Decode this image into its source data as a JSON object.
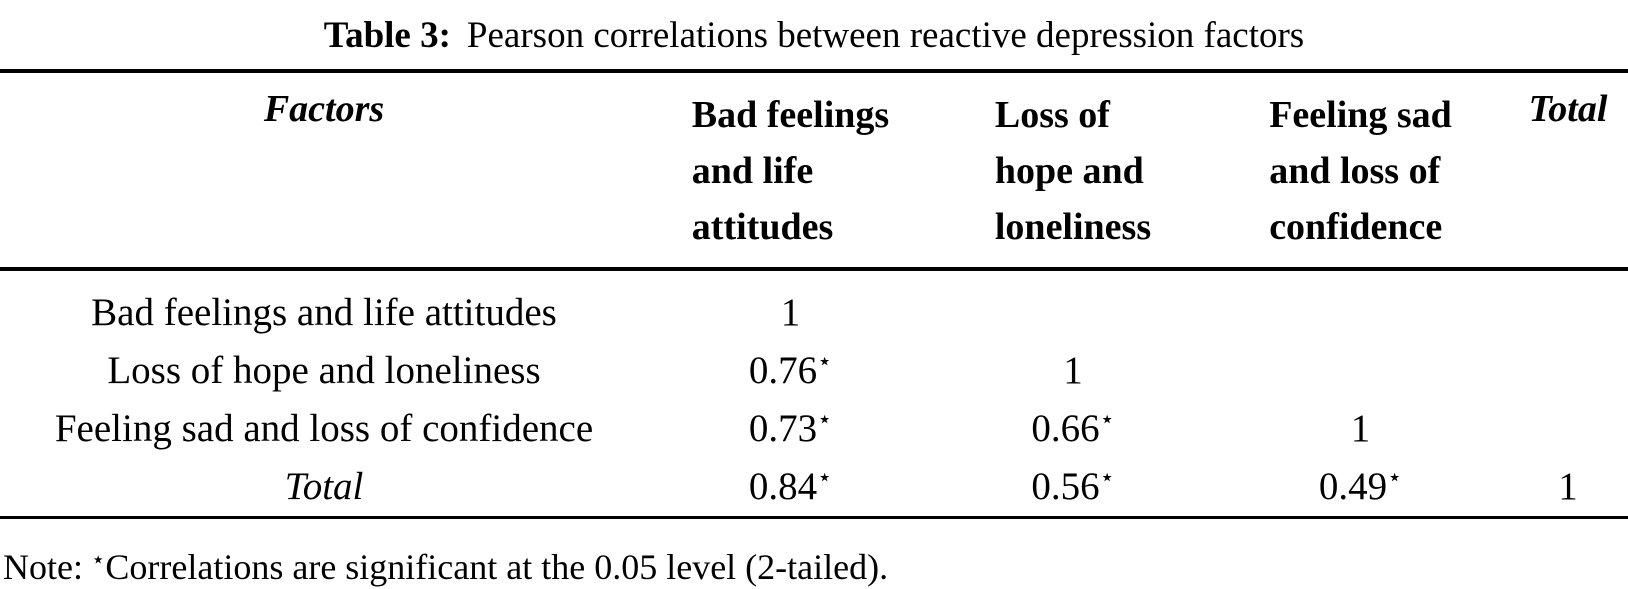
{
  "title": {
    "label": "Table 3:",
    "text": "Pearson correlations between reactive depression factors"
  },
  "table": {
    "header": {
      "factors": "Factors",
      "col2": [
        "Bad feelings",
        "and life",
        "attitudes"
      ],
      "col3": [
        "Loss of",
        "hope and",
        "loneliness"
      ],
      "col4": [
        "Feeling sad",
        "and loss of",
        "confidence"
      ],
      "total": "Total"
    },
    "rows": [
      {
        "label": "Bad feelings and life attitudes",
        "cells": [
          {
            "v": "1",
            "s": ""
          },
          {
            "v": "",
            "s": ""
          },
          {
            "v": "",
            "s": ""
          },
          {
            "v": "",
            "s": ""
          }
        ]
      },
      {
        "label": "Loss of hope and loneliness",
        "cells": [
          {
            "v": "0.76",
            "s": "⋆"
          },
          {
            "v": "1",
            "s": ""
          },
          {
            "v": "",
            "s": ""
          },
          {
            "v": "",
            "s": ""
          }
        ]
      },
      {
        "label": "Feeling sad and loss of confidence",
        "cells": [
          {
            "v": "0.73",
            "s": "⋆"
          },
          {
            "v": "0.66",
            "s": "⋆"
          },
          {
            "v": "1",
            "s": ""
          },
          {
            "v": "",
            "s": ""
          }
        ]
      },
      {
        "label": "Total",
        "cells": [
          {
            "v": "0.84",
            "s": "⋆"
          },
          {
            "v": "0.56",
            "s": "⋆"
          },
          {
            "v": "0.49",
            "s": "⋆"
          },
          {
            "v": "1",
            "s": ""
          }
        ]
      }
    ]
  },
  "note": {
    "prefix": "Note:",
    "star": "⋆",
    "text": "Correlations are significant at the 0.05 level (2-tailed)."
  },
  "colors": {
    "text": "#000000",
    "rule": "#000000",
    "background": "#ffffff"
  }
}
